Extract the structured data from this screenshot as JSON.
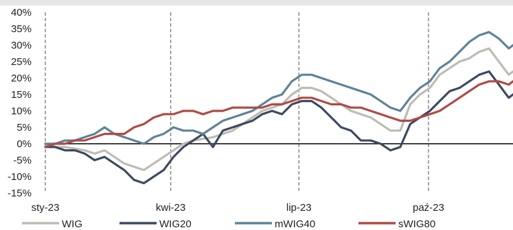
{
  "chart_data": {
    "type": "line",
    "title": "",
    "xlabel": "",
    "ylabel": "",
    "ylim": [
      -15,
      40
    ],
    "yticks": [
      -15,
      -10,
      -5,
      0,
      5,
      10,
      15,
      20,
      25,
      30,
      35,
      40
    ],
    "ytick_labels": [
      "-15%",
      "-10%",
      "-5%",
      "0%",
      "5%",
      "10%",
      "15%",
      "20%",
      "25%",
      "30%",
      "35%",
      "40%"
    ],
    "x_start": "2023-01-02",
    "x_end": "2023-11-30",
    "xticks": [
      {
        "date": "2023-01-02",
        "label": "sty-23"
      },
      {
        "date": "2023-04-01",
        "label": "kwi-23"
      },
      {
        "date": "2023-07-01",
        "label": "lip-23"
      },
      {
        "date": "2023-10-01",
        "label": "paź-23"
      }
    ],
    "grid": {
      "vertical_dashed": true,
      "horizontal": false
    },
    "legend_position": "bottom",
    "series": [
      {
        "name": "WIG",
        "color": "#bcbcb4",
        "points": [
          [
            "2023-01-02",
            0
          ],
          [
            "2023-01-09",
            -1
          ],
          [
            "2023-01-16",
            -1
          ],
          [
            "2023-01-23",
            -1.5
          ],
          [
            "2023-01-30",
            -2
          ],
          [
            "2023-02-06",
            -3
          ],
          [
            "2023-02-13",
            -2
          ],
          [
            "2023-02-20",
            -4
          ],
          [
            "2023-02-27",
            -6
          ],
          [
            "2023-03-06",
            -7
          ],
          [
            "2023-03-13",
            -8
          ],
          [
            "2023-03-20",
            -6
          ],
          [
            "2023-03-27",
            -4
          ],
          [
            "2023-04-03",
            -2
          ],
          [
            "2023-04-10",
            0
          ],
          [
            "2023-04-17",
            1
          ],
          [
            "2023-04-24",
            1.5
          ],
          [
            "2023-05-01",
            2
          ],
          [
            "2023-05-08",
            3
          ],
          [
            "2023-05-15",
            4
          ],
          [
            "2023-05-22",
            6
          ],
          [
            "2023-05-29",
            8
          ],
          [
            "2023-06-05",
            10
          ],
          [
            "2023-06-12",
            11
          ],
          [
            "2023-06-19",
            12
          ],
          [
            "2023-06-26",
            15
          ],
          [
            "2023-07-03",
            17
          ],
          [
            "2023-07-10",
            17
          ],
          [
            "2023-07-17",
            16
          ],
          [
            "2023-07-24",
            14
          ],
          [
            "2023-07-31",
            12
          ],
          [
            "2023-08-07",
            10
          ],
          [
            "2023-08-14",
            9
          ],
          [
            "2023-08-21",
            8
          ],
          [
            "2023-08-28",
            6
          ],
          [
            "2023-09-04",
            4
          ],
          [
            "2023-09-11",
            4
          ],
          [
            "2023-09-18",
            12
          ],
          [
            "2023-09-25",
            15
          ],
          [
            "2023-10-02",
            17
          ],
          [
            "2023-10-09",
            21
          ],
          [
            "2023-10-16",
            23
          ],
          [
            "2023-10-23",
            25
          ],
          [
            "2023-10-30",
            26
          ],
          [
            "2023-11-06",
            28
          ],
          [
            "2023-11-13",
            29
          ],
          [
            "2023-11-20",
            25
          ],
          [
            "2023-11-27",
            21
          ],
          [
            "2023-11-30",
            22
          ]
        ]
      },
      {
        "name": "WIG20",
        "color": "#3c4a60",
        "points": [
          [
            "2023-01-02",
            -1
          ],
          [
            "2023-01-09",
            -1
          ],
          [
            "2023-01-16",
            -2
          ],
          [
            "2023-01-23",
            -2
          ],
          [
            "2023-01-30",
            -3
          ],
          [
            "2023-02-06",
            -5
          ],
          [
            "2023-02-13",
            -4
          ],
          [
            "2023-02-20",
            -6
          ],
          [
            "2023-02-27",
            -8
          ],
          [
            "2023-03-06",
            -11
          ],
          [
            "2023-03-13",
            -12
          ],
          [
            "2023-03-20",
            -10
          ],
          [
            "2023-03-27",
            -8
          ],
          [
            "2023-04-03",
            -4
          ],
          [
            "2023-04-10",
            -1
          ],
          [
            "2023-04-17",
            1
          ],
          [
            "2023-04-24",
            3
          ],
          [
            "2023-05-01",
            -1
          ],
          [
            "2023-05-08",
            4
          ],
          [
            "2023-05-15",
            5
          ],
          [
            "2023-05-22",
            6
          ],
          [
            "2023-05-29",
            7
          ],
          [
            "2023-06-05",
            9
          ],
          [
            "2023-06-12",
            10
          ],
          [
            "2023-06-19",
            9
          ],
          [
            "2023-06-26",
            12
          ],
          [
            "2023-07-03",
            13
          ],
          [
            "2023-07-10",
            13
          ],
          [
            "2023-07-17",
            11
          ],
          [
            "2023-07-24",
            8
          ],
          [
            "2023-07-31",
            5
          ],
          [
            "2023-08-07",
            4
          ],
          [
            "2023-08-14",
            1
          ],
          [
            "2023-08-21",
            1
          ],
          [
            "2023-08-28",
            0
          ],
          [
            "2023-09-04",
            -2
          ],
          [
            "2023-09-11",
            -1
          ],
          [
            "2023-09-18",
            6
          ],
          [
            "2023-09-25",
            8
          ],
          [
            "2023-10-02",
            10
          ],
          [
            "2023-10-09",
            13
          ],
          [
            "2023-10-16",
            16
          ],
          [
            "2023-10-23",
            17
          ],
          [
            "2023-10-30",
            19
          ],
          [
            "2023-11-06",
            21
          ],
          [
            "2023-11-13",
            22
          ],
          [
            "2023-11-20",
            18
          ],
          [
            "2023-11-27",
            14
          ],
          [
            "2023-11-30",
            15
          ]
        ]
      },
      {
        "name": "mWIG40",
        "color": "#5e8397",
        "points": [
          [
            "2023-01-02",
            0
          ],
          [
            "2023-01-09",
            0
          ],
          [
            "2023-01-16",
            1
          ],
          [
            "2023-01-23",
            1
          ],
          [
            "2023-01-30",
            2
          ],
          [
            "2023-02-06",
            3
          ],
          [
            "2023-02-13",
            5
          ],
          [
            "2023-02-20",
            3
          ],
          [
            "2023-02-27",
            2
          ],
          [
            "2023-03-06",
            1
          ],
          [
            "2023-03-13",
            0
          ],
          [
            "2023-03-20",
            2
          ],
          [
            "2023-03-27",
            3
          ],
          [
            "2023-04-03",
            5
          ],
          [
            "2023-04-10",
            4
          ],
          [
            "2023-04-17",
            4
          ],
          [
            "2023-04-24",
            3
          ],
          [
            "2023-05-01",
            5
          ],
          [
            "2023-05-08",
            7
          ],
          [
            "2023-05-15",
            8
          ],
          [
            "2023-05-22",
            9
          ],
          [
            "2023-05-29",
            10
          ],
          [
            "2023-06-05",
            12
          ],
          [
            "2023-06-12",
            14
          ],
          [
            "2023-06-19",
            15
          ],
          [
            "2023-06-26",
            19
          ],
          [
            "2023-07-03",
            21
          ],
          [
            "2023-07-10",
            21
          ],
          [
            "2023-07-17",
            20
          ],
          [
            "2023-07-24",
            19
          ],
          [
            "2023-07-31",
            18
          ],
          [
            "2023-08-07",
            17
          ],
          [
            "2023-08-14",
            16
          ],
          [
            "2023-08-21",
            15
          ],
          [
            "2023-08-28",
            13
          ],
          [
            "2023-09-04",
            11
          ],
          [
            "2023-09-11",
            10
          ],
          [
            "2023-09-18",
            14
          ],
          [
            "2023-09-25",
            17
          ],
          [
            "2023-10-02",
            19
          ],
          [
            "2023-10-09",
            23
          ],
          [
            "2023-10-16",
            25
          ],
          [
            "2023-10-23",
            28
          ],
          [
            "2023-10-30",
            31
          ],
          [
            "2023-11-06",
            33
          ],
          [
            "2023-11-13",
            34
          ],
          [
            "2023-11-20",
            32
          ],
          [
            "2023-11-27",
            29
          ],
          [
            "2023-11-30",
            30
          ]
        ]
      },
      {
        "name": "sWIG80",
        "color": "#b04a45",
        "points": [
          [
            "2023-01-02",
            -1
          ],
          [
            "2023-01-09",
            0
          ],
          [
            "2023-01-16",
            0
          ],
          [
            "2023-01-23",
            1
          ],
          [
            "2023-01-30",
            1
          ],
          [
            "2023-02-06",
            2
          ],
          [
            "2023-02-13",
            3
          ],
          [
            "2023-02-20",
            3
          ],
          [
            "2023-02-27",
            3
          ],
          [
            "2023-03-06",
            5
          ],
          [
            "2023-03-13",
            6
          ],
          [
            "2023-03-20",
            8
          ],
          [
            "2023-03-27",
            9
          ],
          [
            "2023-04-03",
            9
          ],
          [
            "2023-04-10",
            10
          ],
          [
            "2023-04-17",
            10
          ],
          [
            "2023-04-24",
            9
          ],
          [
            "2023-05-01",
            10
          ],
          [
            "2023-05-08",
            10
          ],
          [
            "2023-05-15",
            11
          ],
          [
            "2023-05-22",
            11
          ],
          [
            "2023-05-29",
            11
          ],
          [
            "2023-06-05",
            11
          ],
          [
            "2023-06-12",
            12
          ],
          [
            "2023-06-19",
            12
          ],
          [
            "2023-06-26",
            13
          ],
          [
            "2023-07-03",
            14
          ],
          [
            "2023-07-10",
            14
          ],
          [
            "2023-07-17",
            13
          ],
          [
            "2023-07-24",
            12
          ],
          [
            "2023-07-31",
            12
          ],
          [
            "2023-08-07",
            11
          ],
          [
            "2023-08-14",
            11
          ],
          [
            "2023-08-21",
            10
          ],
          [
            "2023-08-28",
            9
          ],
          [
            "2023-09-04",
            8
          ],
          [
            "2023-09-11",
            7
          ],
          [
            "2023-09-18",
            7
          ],
          [
            "2023-09-25",
            8
          ],
          [
            "2023-10-02",
            9
          ],
          [
            "2023-10-09",
            10
          ],
          [
            "2023-10-16",
            12
          ],
          [
            "2023-10-23",
            14
          ],
          [
            "2023-10-30",
            16
          ],
          [
            "2023-11-06",
            18
          ],
          [
            "2023-11-13",
            19
          ],
          [
            "2023-11-20",
            19
          ],
          [
            "2023-11-27",
            18
          ],
          [
            "2023-11-30",
            19
          ]
        ]
      }
    ]
  }
}
